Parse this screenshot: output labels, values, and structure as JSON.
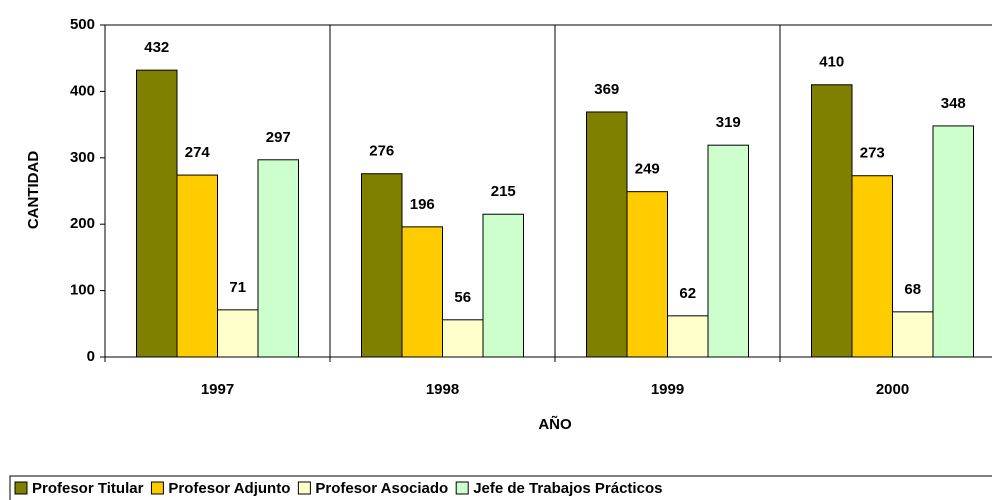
{
  "chart_data": {
    "type": "bar",
    "x_label": "AÑO",
    "y_label": "CANTIDAD",
    "categories": [
      "1997",
      "1998",
      "1999",
      "2000"
    ],
    "series": [
      {
        "name": "Profesor Titular",
        "color": "#808000",
        "values": [
          432,
          276,
          369,
          410
        ]
      },
      {
        "name": "Profesor Adjunto",
        "color": "#ffcc00",
        "values": [
          274,
          196,
          249,
          273
        ]
      },
      {
        "name": "Profesor Asociado",
        "color": "#ffffcc",
        "values": [
          71,
          56,
          62,
          68
        ]
      },
      {
        "name": "Jefe de Trabajos Prácticos",
        "color": "#ccffcc",
        "values": [
          297,
          215,
          319,
          348
        ]
      }
    ],
    "ylim": [
      0,
      500
    ],
    "yticks": [
      0,
      100,
      200,
      300,
      400,
      500
    ],
    "legend": "bottom"
  }
}
